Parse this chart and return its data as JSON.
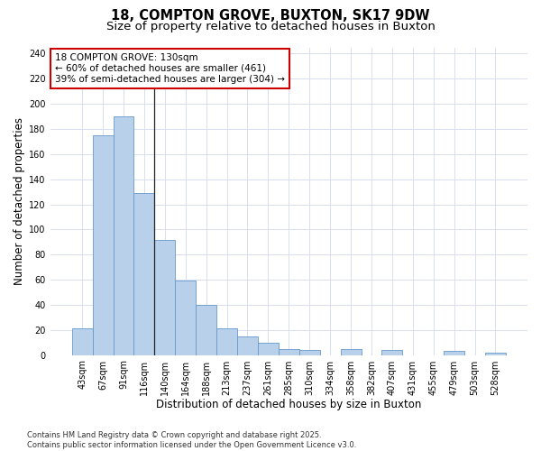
{
  "title_line1": "18, COMPTON GROVE, BUXTON, SK17 9DW",
  "title_line2": "Size of property relative to detached houses in Buxton",
  "xlabel": "Distribution of detached houses by size in Buxton",
  "ylabel": "Number of detached properties",
  "categories": [
    "43sqm",
    "67sqm",
    "91sqm",
    "116sqm",
    "140sqm",
    "164sqm",
    "188sqm",
    "213sqm",
    "237sqm",
    "261sqm",
    "285sqm",
    "310sqm",
    "334sqm",
    "358sqm",
    "382sqm",
    "407sqm",
    "431sqm",
    "455sqm",
    "479sqm",
    "503sqm",
    "528sqm"
  ],
  "values": [
    21,
    175,
    190,
    129,
    92,
    59,
    40,
    21,
    15,
    10,
    5,
    4,
    0,
    5,
    0,
    4,
    0,
    0,
    3,
    0,
    2
  ],
  "bar_color": "#b8d0ea",
  "bar_edge_color": "#6699cc",
  "background_color": "#f5f7ff",
  "grid_color": "#d8dff0",
  "annotation_box_text": "18 COMPTON GROVE: 130sqm\n← 60% of detached houses are smaller (461)\n39% of semi-detached houses are larger (304) →",
  "annotation_box_color": "#cc0000",
  "vline_x": 3.5,
  "ylim": [
    0,
    245
  ],
  "yticks": [
    0,
    20,
    40,
    60,
    80,
    100,
    120,
    140,
    160,
    180,
    200,
    220,
    240
  ],
  "footnote": "Contains HM Land Registry data © Crown copyright and database right 2025.\nContains public sector information licensed under the Open Government Licence v3.0.",
  "title_fontsize": 10.5,
  "subtitle_fontsize": 9.5,
  "xlabel_fontsize": 8.5,
  "ylabel_fontsize": 8.5,
  "tick_fontsize": 7,
  "annot_fontsize": 7.5,
  "footnote_fontsize": 6
}
